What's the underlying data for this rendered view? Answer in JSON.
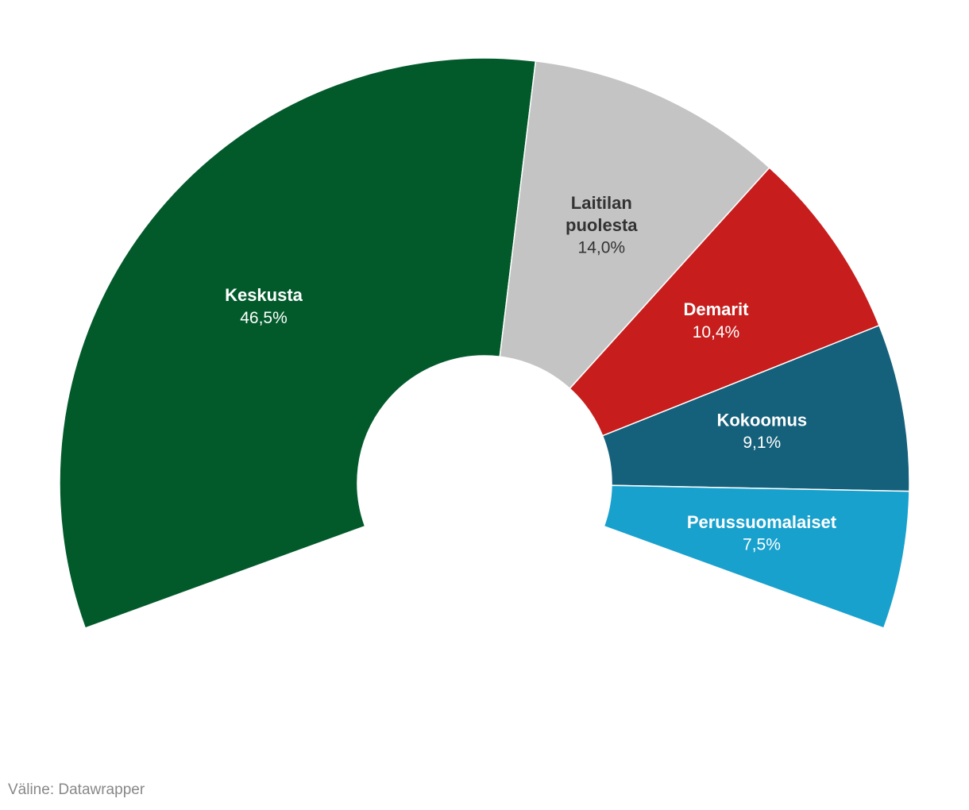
{
  "chart_data": {
    "type": "pie",
    "variant": "semicircle-donut",
    "arc_degrees": 220,
    "slices": [
      {
        "name": "Keskusta",
        "label_lines": [
          "Keskusta"
        ],
        "value": 46.5,
        "value_label": "46,5%",
        "color": "#025a2b",
        "text_color": "#ffffff"
      },
      {
        "name": "Laitilan puolesta",
        "label_lines": [
          "Laitilan",
          "puolesta"
        ],
        "value": 14.0,
        "value_label": "14,0%",
        "color": "#c4c4c4",
        "text_color": "#333333"
      },
      {
        "name": "Demarit",
        "label_lines": [
          "Demarit"
        ],
        "value": 10.4,
        "value_label": "10,4%",
        "color": "#c71e1d",
        "text_color": "#ffffff"
      },
      {
        "name": "Kokoomus",
        "label_lines": [
          "Kokoomus"
        ],
        "value": 9.1,
        "value_label": "9,1%",
        "color": "#15607a",
        "text_color": "#ffffff"
      },
      {
        "name": "Perussuomalaiset",
        "label_lines": [
          "Perussuomalaiset"
        ],
        "value": 7.5,
        "value_label": "7,5%",
        "color": "#18a1cd",
        "text_color": "#ffffff"
      }
    ]
  },
  "footer": {
    "source": "Väline: Datawrapper"
  }
}
